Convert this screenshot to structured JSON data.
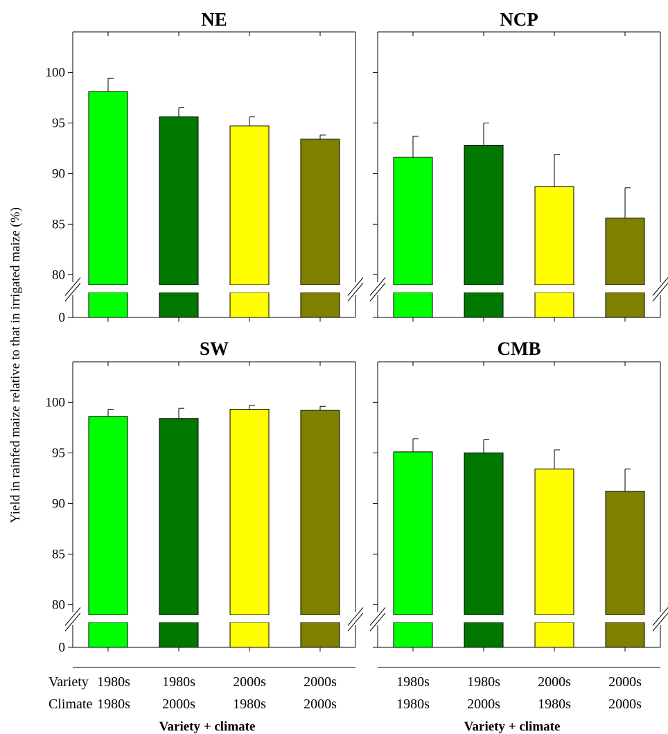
{
  "figure": {
    "ylabel": "Yield in rainfed maize relative to that in irrigated maize  (%)",
    "xlabel": "Variety + climate",
    "row_labels": [
      "Variety",
      "Climate"
    ]
  },
  "colors": {
    "bars": [
      "#00ff00",
      "#007800",
      "#ffff00",
      "#7f7f00"
    ],
    "axis": "#000000",
    "break": "#ffffff"
  },
  "chart_data": [
    {
      "type": "bar",
      "title": "NE",
      "categories": [
        [
          "1980s",
          "1980s"
        ],
        [
          "1980s",
          "2000s"
        ],
        [
          "2000s",
          "1980s"
        ],
        [
          "2000s",
          "2000s"
        ]
      ],
      "values": [
        98.1,
        95.6,
        94.7,
        93.4
      ],
      "errors": [
        1.3,
        0.9,
        0.9,
        0.4
      ],
      "yticks": [
        0,
        80,
        85,
        90,
        95,
        100
      ],
      "ylim": [
        0,
        104
      ],
      "axis_break": [
        0,
        79
      ],
      "xlabel": "Variety + climate",
      "ylabel": "Yield in rainfed maize relative to that in irrigated maize  (%)"
    },
    {
      "type": "bar",
      "title": "NCP",
      "categories": [
        [
          "1980s",
          "1980s"
        ],
        [
          "1980s",
          "2000s"
        ],
        [
          "2000s",
          "1980s"
        ],
        [
          "2000s",
          "2000s"
        ]
      ],
      "values": [
        91.6,
        92.8,
        88.7,
        85.6
      ],
      "errors": [
        2.1,
        2.2,
        3.2,
        3.0
      ],
      "yticks": [
        0,
        80,
        85,
        90,
        95,
        100
      ],
      "ylim": [
        0,
        104
      ],
      "axis_break": [
        0,
        79
      ]
    },
    {
      "type": "bar",
      "title": "SW",
      "categories": [
        [
          "1980s",
          "1980s"
        ],
        [
          "1980s",
          "2000s"
        ],
        [
          "2000s",
          "1980s"
        ],
        [
          "2000s",
          "2000s"
        ]
      ],
      "values": [
        98.6,
        98.4,
        99.3,
        99.2
      ],
      "errors": [
        0.7,
        1.0,
        0.4,
        0.4
      ],
      "yticks": [
        0,
        80,
        85,
        90,
        95,
        100
      ],
      "ylim": [
        0,
        104
      ],
      "axis_break": [
        0,
        79
      ],
      "xlabel": "Variety + climate"
    },
    {
      "type": "bar",
      "title": "CMB",
      "categories": [
        [
          "1980s",
          "1980s"
        ],
        [
          "1980s",
          "2000s"
        ],
        [
          "2000s",
          "1980s"
        ],
        [
          "2000s",
          "2000s"
        ]
      ],
      "values": [
        95.1,
        95.0,
        93.4,
        91.2
      ],
      "errors": [
        1.3,
        1.3,
        1.9,
        2.2
      ],
      "yticks": [
        0,
        80,
        85,
        90,
        95,
        100
      ],
      "ylim": [
        0,
        104
      ],
      "axis_break": [
        0,
        79
      ],
      "xlabel": "Variety + climate"
    }
  ]
}
